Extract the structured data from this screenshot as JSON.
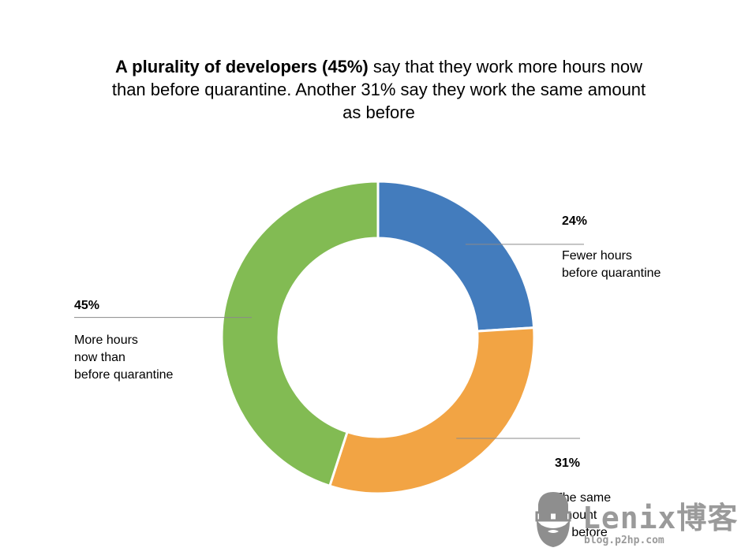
{
  "title": {
    "bold": "A plurality of developers (45%)",
    "rest": " say that they work more hours now than before quarantine. Another 31% say they work the same amount as before"
  },
  "chart_data": {
    "type": "pie",
    "variant": "donut",
    "slices": [
      {
        "key": "fewer",
        "value": 24,
        "pct_label": "24%",
        "label": "Fewer hours\nbefore quarantine",
        "color": "#437cbd"
      },
      {
        "key": "same",
        "value": 31,
        "pct_label": "31%",
        "label": "The same\namount\nas before",
        "color": "#f2a444"
      },
      {
        "key": "more",
        "value": 45,
        "pct_label": "45%",
        "label": "More hours\nnow than\nbefore quarantine",
        "color": "#82bb53"
      }
    ],
    "start_angle_deg": 0,
    "direction": "clockwise",
    "legend": "callouts"
  },
  "watermark": {
    "text": "Lenix博客",
    "sub": "blog.p2hp.com",
    "icon": "bearded-man-glasses-icon"
  }
}
